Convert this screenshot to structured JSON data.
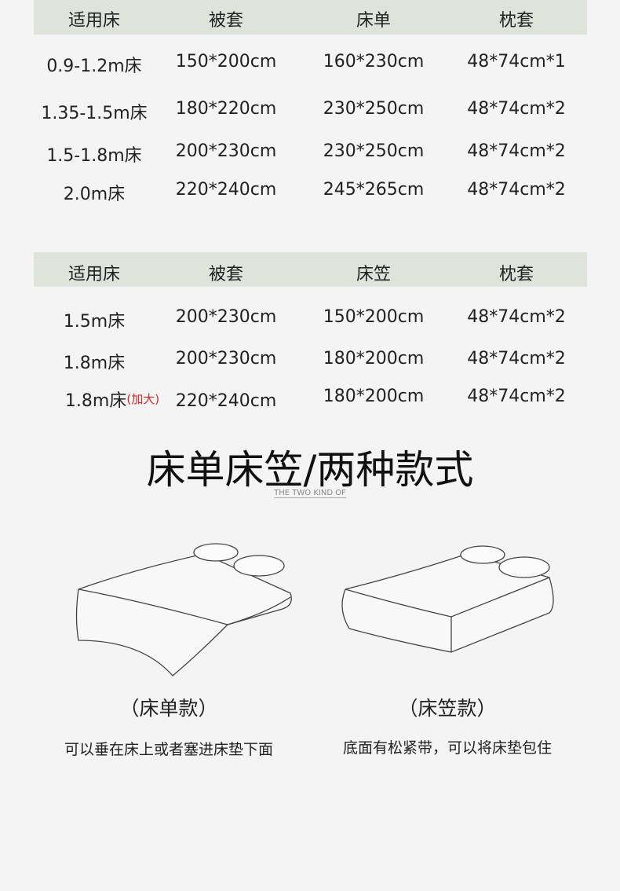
{
  "table1": {
    "headers": [
      "适用床",
      "被套",
      "床单",
      "枕套"
    ],
    "rows": [
      [
        "0.9-1.2m床",
        "150*200cm",
        "160*230cm",
        "48*74cm*1"
      ],
      [
        "1.35-1.5m床",
        "180*220cm",
        "230*250cm",
        "48*74cm*2"
      ],
      [
        "1.5-1.8m床",
        "200*230cm",
        "230*250cm",
        "48*74cm*2"
      ],
      [
        "2.0m床",
        "220*240cm",
        "245*265cm",
        "48*74cm*2"
      ]
    ]
  },
  "table2": {
    "headers": [
      "适用床",
      "被套",
      "床笠",
      "枕套"
    ],
    "rows": [
      [
        "1.5m床",
        "200*230cm",
        "150*200cm",
        "48*74cm*2"
      ],
      [
        "1.8m床",
        "200*230cm",
        "180*200cm",
        "48*74cm*2"
      ],
      [
        "1.8m床",
        "220*240cm",
        "180*200cm",
        "48*74cm*2"
      ]
    ],
    "note": "(加大)"
  },
  "section": {
    "title": "床单床笠/两种款式",
    "subtitle": "THE TWO KIND OF"
  },
  "styles": [
    {
      "name": "（床单款）",
      "desc": "可以垂在床上或者塞进床垫下面"
    },
    {
      "name": "（床笠款）",
      "desc": "底面有松紧带，可以将床垫包住"
    }
  ],
  "colors": {
    "header_bg": "#dfe4da",
    "accent_red": "#d9252a"
  }
}
